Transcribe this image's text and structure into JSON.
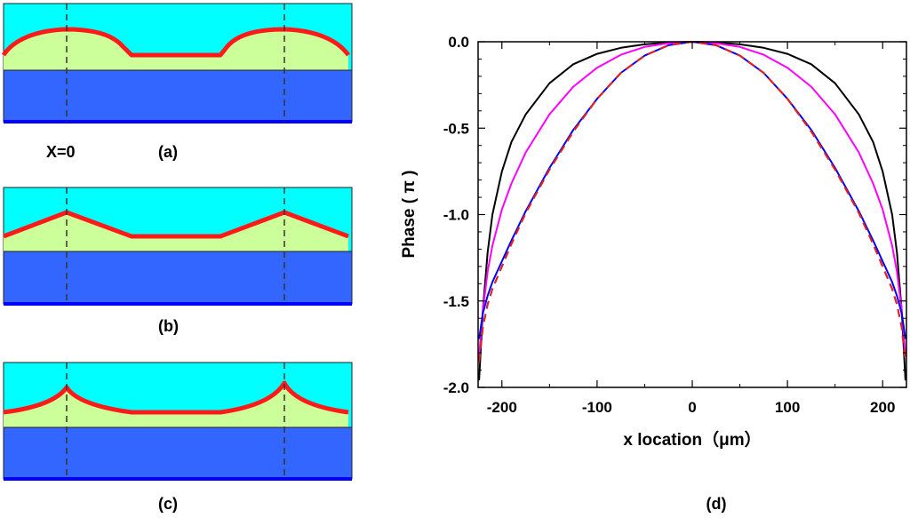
{
  "figure": {
    "panel_a_label": "(a)",
    "panel_b_label": "(b)",
    "panel_c_label": "(c)",
    "panel_d_label": "(d)",
    "x0_label": "X=0"
  },
  "colors": {
    "air": "#00ffff",
    "film": "#ccff99",
    "substrate": "#3366ff",
    "profile": "#ff1a1a",
    "bottom_line": "#0000ff",
    "dashed": "#333333"
  },
  "profiles": {
    "a": {
      "shape": "rounded"
    },
    "b": {
      "shape": "linear"
    },
    "c": {
      "shape": "cusp"
    }
  },
  "chart_data": {
    "type": "line",
    "xlabel": "x location（μm）",
    "ylabel": "Phase ( π )",
    "xlim": [
      -225,
      225
    ],
    "ylim": [
      -2.0,
      0.0
    ],
    "xticks": [
      -200,
      -100,
      0,
      100,
      200
    ],
    "xtick_labels": [
      "-200",
      "-100",
      "0",
      "100",
      "200"
    ],
    "yticks": [
      0.0,
      -0.5,
      -1.0,
      -1.5,
      -2.0
    ],
    "ytick_labels": [
      "0.0",
      "-0.5",
      "-1.0",
      "-1.5",
      "-2.0"
    ],
    "grid": false,
    "series": [
      {
        "color": "#000000",
        "dash": "solid",
        "x": [
          -224,
          -220,
          -215,
          -210,
          -200,
          -190,
          -175,
          -150,
          -125,
          -100,
          -75,
          -50,
          -25,
          0,
          25,
          50,
          75,
          100,
          125,
          150,
          175,
          190,
          200,
          210,
          215,
          220,
          224
        ],
        "y": [
          -1.96,
          -1.55,
          -1.22,
          -1.0,
          -0.75,
          -0.58,
          -0.42,
          -0.24,
          -0.13,
          -0.07,
          -0.035,
          -0.015,
          -0.004,
          0.0,
          -0.004,
          -0.015,
          -0.035,
          -0.07,
          -0.13,
          -0.24,
          -0.42,
          -0.58,
          -0.75,
          -1.0,
          -1.22,
          -1.55,
          -1.96
        ]
      },
      {
        "color": "#ff00ff",
        "dash": "solid",
        "x": [
          -224,
          -220,
          -215,
          -210,
          -200,
          -190,
          -175,
          -150,
          -125,
          -100,
          -75,
          -50,
          -25,
          0,
          25,
          50,
          75,
          100,
          125,
          150,
          175,
          190,
          200,
          210,
          215,
          220,
          224
        ],
        "y": [
          -1.82,
          -1.55,
          -1.33,
          -1.18,
          -0.97,
          -0.82,
          -0.64,
          -0.42,
          -0.26,
          -0.15,
          -0.075,
          -0.03,
          -0.008,
          0.0,
          -0.008,
          -0.03,
          -0.075,
          -0.15,
          -0.26,
          -0.42,
          -0.64,
          -0.82,
          -0.97,
          -1.18,
          -1.33,
          -1.55,
          -1.82
        ]
      },
      {
        "color": "#0000ff",
        "dash": "solid",
        "x": [
          -224,
          -220,
          -215,
          -210,
          -200,
          -190,
          -175,
          -150,
          -125,
          -100,
          -75,
          -50,
          -25,
          0,
          25,
          50,
          75,
          100,
          125,
          150,
          175,
          190,
          200,
          210,
          215,
          220,
          224
        ],
        "y": [
          -1.72,
          -1.57,
          -1.47,
          -1.39,
          -1.27,
          -1.15,
          -0.98,
          -0.73,
          -0.51,
          -0.33,
          -0.18,
          -0.08,
          -0.02,
          0.0,
          -0.02,
          -0.08,
          -0.18,
          -0.33,
          -0.51,
          -0.73,
          -0.98,
          -1.15,
          -1.27,
          -1.39,
          -1.47,
          -1.57,
          -1.72
        ]
      },
      {
        "color": "#dd2222",
        "dash": "dashed",
        "x": [
          -224,
          -220,
          -215,
          -210,
          -200,
          -190,
          -175,
          -150,
          -125,
          -100,
          -75,
          -50,
          -25,
          0,
          25,
          50,
          75,
          100,
          125,
          150,
          175,
          190,
          200,
          210,
          215,
          220,
          224
        ],
        "y": [
          -1.85,
          -1.65,
          -1.52,
          -1.43,
          -1.3,
          -1.17,
          -0.99,
          -0.74,
          -0.52,
          -0.33,
          -0.18,
          -0.08,
          -0.02,
          0.0,
          -0.02,
          -0.08,
          -0.18,
          -0.33,
          -0.52,
          -0.74,
          -0.99,
          -1.17,
          -1.3,
          -1.43,
          -1.52,
          -1.65,
          -1.85
        ]
      }
    ]
  }
}
